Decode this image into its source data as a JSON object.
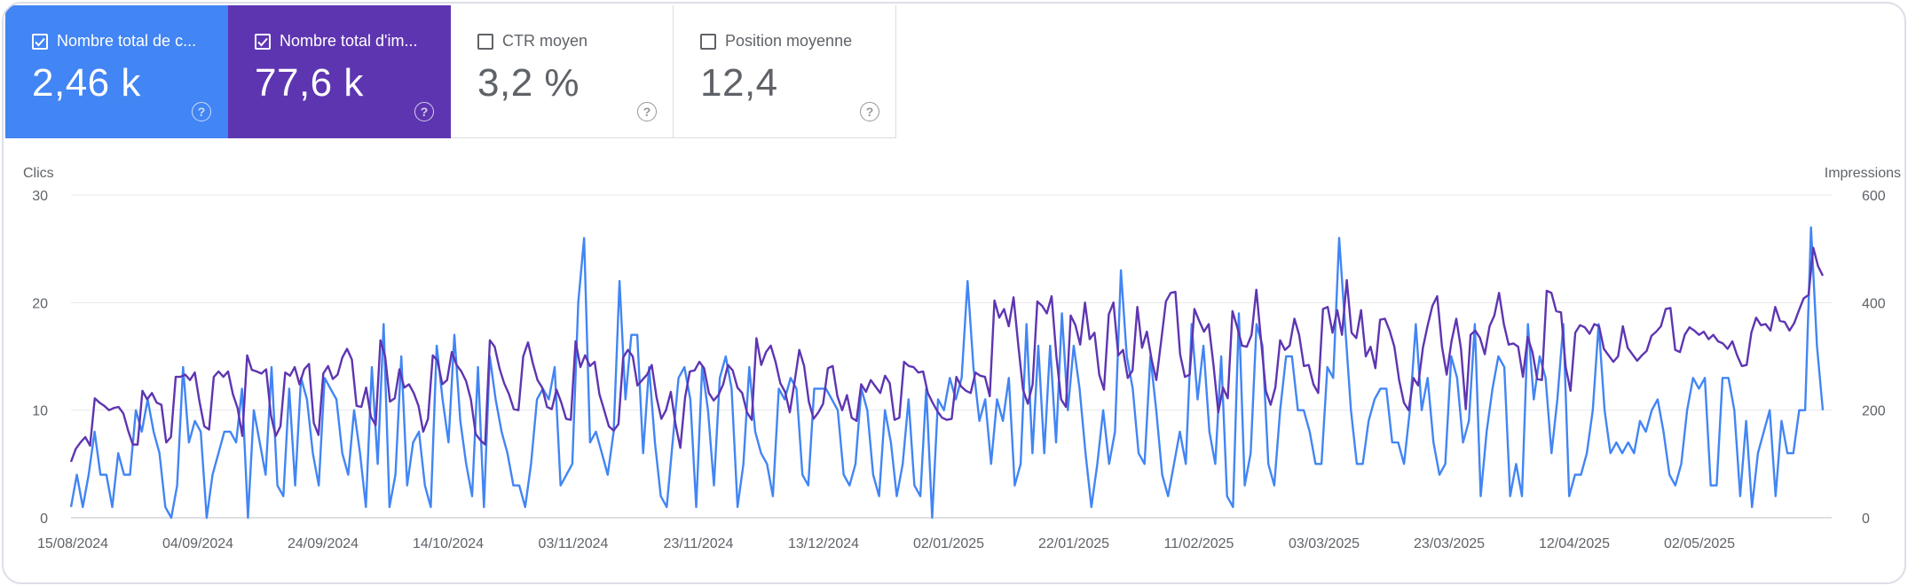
{
  "cards": [
    {
      "label": "Nombre total de c...",
      "value": "2,46 k",
      "checked": true,
      "color": "#4285f4"
    },
    {
      "label": "Nombre total d'im...",
      "value": "77,6 k",
      "checked": true,
      "color": "#5e35b1"
    },
    {
      "label": "CTR moyen",
      "value": "3,2 %",
      "checked": false
    },
    {
      "label": "Position moyenne",
      "value": "12,4",
      "checked": false
    }
  ],
  "help_glyph": "?",
  "chart_data": {
    "type": "line",
    "left_axis_title": "Clics",
    "right_axis_title": "Impressions",
    "left_ticks": [
      "0",
      "10",
      "20",
      "30"
    ],
    "right_ticks": [
      "0",
      "200",
      "400",
      "600"
    ],
    "ylim_left": [
      0,
      30
    ],
    "ylim_right": [
      0,
      600
    ],
    "x_tick_labels": [
      "15/08/2024",
      "04/09/2024",
      "24/09/2024",
      "14/10/2024",
      "03/11/2024",
      "23/11/2024",
      "13/12/2024",
      "02/01/2025",
      "22/01/2025",
      "11/02/2025",
      "03/03/2025",
      "23/03/2025",
      "12/04/2025",
      "02/05/2025"
    ],
    "x_start": "15/08/2024",
    "x_end": "22/05/2025",
    "grid": true,
    "series": [
      {
        "name": "Clics",
        "color": "#4285f4",
        "axis": "left",
        "values": [
          1,
          4,
          1,
          4,
          8,
          4,
          4,
          1,
          6,
          4,
          4,
          10,
          8,
          11,
          8,
          6,
          1,
          0,
          3,
          14,
          7,
          9,
          8,
          0,
          4,
          6,
          8,
          8,
          7,
          12,
          0,
          10,
          7,
          4,
          14,
          3,
          2,
          12,
          3,
          13,
          11,
          6,
          3,
          13,
          12,
          11,
          6,
          4,
          10,
          6,
          1,
          14,
          5,
          18,
          1,
          4,
          15,
          3,
          7,
          8,
          3,
          1,
          16,
          11,
          7,
          17,
          9,
          5,
          2,
          14,
          1,
          15,
          11,
          8,
          6,
          3,
          3,
          1,
          5,
          11,
          12,
          11,
          14,
          3,
          4,
          5,
          20,
          26,
          7,
          8,
          6,
          4,
          8,
          22,
          11,
          17,
          17,
          6,
          14,
          7,
          2,
          1,
          7,
          13,
          14,
          11,
          1,
          14,
          10,
          3,
          13,
          15,
          12,
          1,
          5,
          14,
          8,
          6,
          5,
          2,
          12,
          11,
          13,
          12,
          4,
          3,
          12,
          12,
          12,
          11,
          10,
          4,
          3,
          5,
          12,
          10,
          4,
          2,
          10,
          7,
          2,
          5,
          11,
          3,
          2,
          12,
          0,
          11,
          10,
          13,
          11,
          13,
          22,
          14,
          9,
          11,
          5,
          11,
          9,
          13,
          3,
          5,
          18,
          6,
          16,
          6,
          16,
          7,
          19,
          10,
          16,
          12,
          6,
          1,
          5,
          10,
          5,
          8,
          23,
          15,
          12,
          6,
          5,
          15,
          10,
          4,
          2,
          5,
          8,
          5,
          18,
          11,
          16,
          8,
          5,
          15,
          2,
          1,
          19,
          3,
          6,
          18,
          16,
          5,
          3,
          10,
          15,
          15,
          10,
          10,
          8,
          5,
          5,
          14,
          13,
          26,
          18,
          10,
          5,
          5,
          9,
          11,
          12,
          12,
          7,
          7,
          5,
          10,
          18,
          10,
          13,
          7,
          4,
          5,
          15,
          13,
          7,
          9,
          18,
          2,
          8,
          12,
          15,
          14,
          2,
          5,
          2,
          18,
          11,
          15,
          13,
          6,
          11,
          18,
          2,
          4,
          4,
          6,
          10,
          18,
          10,
          6,
          7,
          6,
          7,
          6,
          9,
          8,
          10,
          11,
          8,
          4,
          3,
          5,
          10,
          13,
          12,
          13,
          3,
          3,
          13,
          13,
          10,
          2,
          9,
          1,
          6,
          8,
          10,
          2,
          9,
          6,
          6,
          10,
          10,
          27,
          16,
          10
        ],
        "note_values": "daily clicks"
      },
      {
        "name": "Impressions",
        "color": "#5e35b1",
        "axis": "right",
        "values": [
          104,
          128,
          140,
          150,
          134,
          222,
          214,
          208,
          200,
          204,
          206,
          194,
          162,
          136,
          136,
          236,
          220,
          232,
          214,
          210,
          140,
          150,
          262,
          262,
          266,
          256,
          270,
          216,
          170,
          164,
          262,
          272,
          262,
          272,
          230,
          204,
          152,
          302,
          275,
          272,
          268,
          276,
          190,
          152,
          170,
          270,
          264,
          280,
          248,
          276,
          286,
          176,
          154,
          268,
          282,
          258,
          266,
          298,
          314,
          294,
          208,
          206,
          242,
          188,
          172,
          330,
          300,
          216,
          222,
          276,
          242,
          248,
          232,
          208,
          160,
          184,
          302,
          292,
          248,
          256,
          308,
          284,
          272,
          254,
          220,
          156,
          144,
          136,
          330,
          318,
          278,
          250,
          230,
          202,
          200,
          300,
          326,
          288,
          256,
          242,
          206,
          202,
          238,
          214,
          184,
          182,
          328,
          280,
          302,
          282,
          290,
          230,
          200,
          170,
          162,
          174,
          298,
          312,
          300,
          246,
          256,
          266,
          284,
          224,
          184,
          200,
          234,
          174,
          130,
          224,
          272,
          274,
          290,
          278,
          232,
          218,
          228,
          248,
          284,
          274,
          242,
          232,
          196,
          182,
          334,
          284,
          308,
          320,
          290,
          250,
          234,
          196,
          252,
          312,
          282,
          216,
          184,
          196,
          212,
          278,
          282,
          226,
          200,
          228,
          186,
          180,
          248,
          234,
          256,
          244,
          232,
          264,
          250,
          182,
          186,
          290,
          282,
          280,
          270,
          272,
          232,
          214,
          198,
          186,
          182,
          184,
          262,
          244,
          236,
          232,
          270,
          264,
          262,
          226,
          404,
          372,
          388,
          356,
          410,
          320,
          238,
          212,
          248,
          402,
          394,
          380,
          412,
          300,
          220,
          206,
          376,
          358,
          322,
          400,
          332,
          344,
          266,
          238,
          378,
          400,
          302,
          312,
          260,
          274,
          392,
          316,
          346,
          294,
          256,
          328,
          402,
          418,
          420,
          304,
          262,
          266,
          388,
          366,
          346,
          360,
          284,
          196,
          242,
          222,
          384,
          354,
          320,
          318,
          340,
          424,
          330,
          236,
          210,
          242,
          330,
          312,
          320,
          370,
          340,
          282,
          284,
          248,
          232,
          388,
          392,
          344,
          386,
          340,
          442,
          344,
          334,
          386,
          300,
          318,
          278,
          368,
          370,
          348,
          318,
          256,
          214,
          200,
          260,
          246,
          316,
          358,
          394,
          412,
          318,
          266,
          328,
          370,
          314,
          202,
          340,
          348,
          334,
          304,
          356,
          376,
          418,
          360,
          322,
          324,
          318,
          262,
          336,
          308,
          258,
          256,
          422,
          418,
          384,
          382,
          280,
          236,
          344,
          358,
          354,
          342,
          360,
          356,
          314,
          302,
          290,
          300,
          356,
          316,
          304,
          292,
          302,
          310,
          338,
          346,
          356,
          388,
          390,
          312,
          308,
          340,
          354,
          348,
          340,
          346,
          332,
          340,
          328,
          324,
          314,
          328,
          302,
          282,
          284,
          344,
          372,
          358,
          360,
          348,
          392,
          366,
          364,
          348,
          362,
          386,
          408,
          414,
          502,
          468,
          450
        ]
      }
    ]
  }
}
